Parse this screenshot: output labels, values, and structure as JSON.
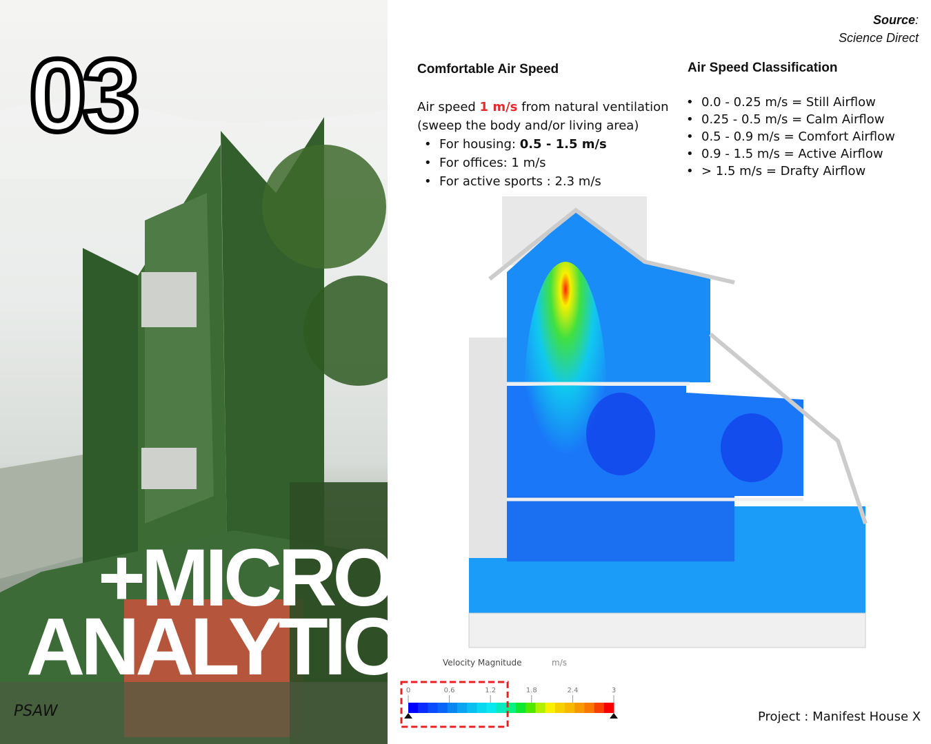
{
  "left": {
    "number": "03",
    "title_line1": "+MICRO",
    "title_line2": "ANALYTIC",
    "logo": "PSAW"
  },
  "source": {
    "label": "Source",
    "colon": ":",
    "value": "Science Direct"
  },
  "comfort": {
    "heading": "Comfortable Air Speed",
    "line1_pre": "Air speed ",
    "line1_value": "1 m/s",
    "line1_post": " from natural ventilation",
    "line2": "(sweep the body and/or living area)",
    "items": [
      {
        "label": "For housing: ",
        "value": "0.5 - 1.5 m/s"
      },
      {
        "label": "For offices: 1 m/s"
      },
      {
        "label": "For active sports : 2.3 m/s"
      }
    ]
  },
  "classification": {
    "heading": "Air Speed Classification",
    "items": [
      "0.0 - 0.25 m/s = Still Airflow",
      "0.25 - 0.5 m/s = Calm Airflow",
      "0.5 - 0.9 m/s = Comfort Airflow",
      "0.9 - 1.5 m/s = Active Airflow",
      "> 1.5 m/s = Drafty Airflow"
    ]
  },
  "legend": {
    "title": "Velocity Magnitude",
    "unit": "m/s",
    "ticks": [
      "0",
      "0.6",
      "1.2",
      "1.8",
      "2.4",
      "3"
    ],
    "range": [
      0,
      3
    ],
    "highlight_range": [
      0,
      1.35
    ],
    "colors": [
      "#0000ff",
      "#0a2cff",
      "#0a4cff",
      "#0a66f8",
      "#0a88f0",
      "#0aa4f0",
      "#0ac0f0",
      "#0ad8f0",
      "#0ae8f0",
      "#0ae8c0",
      "#0af080",
      "#10e830",
      "#50e800",
      "#b0f000",
      "#f8f000",
      "#f8d000",
      "#f8b800",
      "#f89800",
      "#f87800",
      "#f84000",
      "#f80000"
    ],
    "highlight_color": "#e82020"
  },
  "project": "Project : Manifest House X"
}
